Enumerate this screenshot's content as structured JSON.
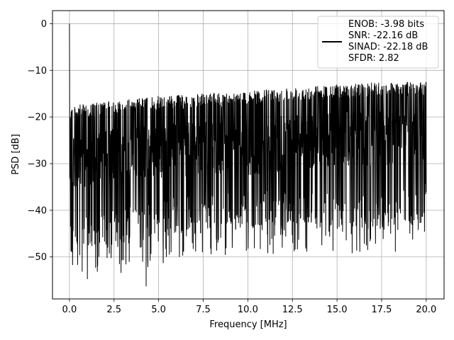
{
  "chart_data": {
    "type": "line",
    "xlabel": "Frequency [MHz]",
    "ylabel": "PSD [dB]",
    "xlim": [
      -0.95,
      21.0
    ],
    "ylim": [
      -59.0,
      2.8
    ],
    "xticks": [
      0.0,
      2.5,
      5.0,
      7.5,
      10.0,
      12.5,
      15.0,
      17.5,
      20.0
    ],
    "xtick_labels": [
      "0.0",
      "2.5",
      "5.0",
      "7.5",
      "10.0",
      "12.5",
      "15.0",
      "17.5",
      "20.0"
    ],
    "yticks": [
      0,
      -10,
      -20,
      -30,
      -40,
      -50
    ],
    "ytick_labels": [
      "0",
      "−10",
      "−20",
      "−30",
      "−40",
      "−50"
    ],
    "grid": true,
    "legend": "top-right",
    "series_color": "#000000",
    "series": [
      {
        "name": "ENOB: -3.98 bits\nSNR: -22.16 dB\nSINAD: -22.18 dB\nSFDR: 2.82",
        "x_range": [
          0.0,
          20.0
        ],
        "points": 2048,
        "peak": {
          "x": 0.0,
          "y": 0.0
        },
        "upper_envelope": {
          "x": [
            0.2,
            2.5,
            5.0,
            7.5,
            10.0,
            12.5,
            15.0,
            17.5,
            20.0
          ],
          "y": [
            -17.5,
            -16.5,
            -15.5,
            -15.0,
            -14.5,
            -13.5,
            -13.0,
            -12.5,
            -12.5
          ]
        },
        "lower_envelope": {
          "x": [
            0.2,
            2.5,
            5.0,
            7.5,
            10.0,
            12.5,
            15.0,
            17.5,
            20.0
          ],
          "y": [
            -48.0,
            -46.0,
            -44.0,
            -42.0,
            -42.0,
            -41.0,
            -42.0,
            -42.0,
            -40.0
          ]
        },
        "minimum": {
          "x": 4.3,
          "y": -56.3
        }
      }
    ]
  }
}
